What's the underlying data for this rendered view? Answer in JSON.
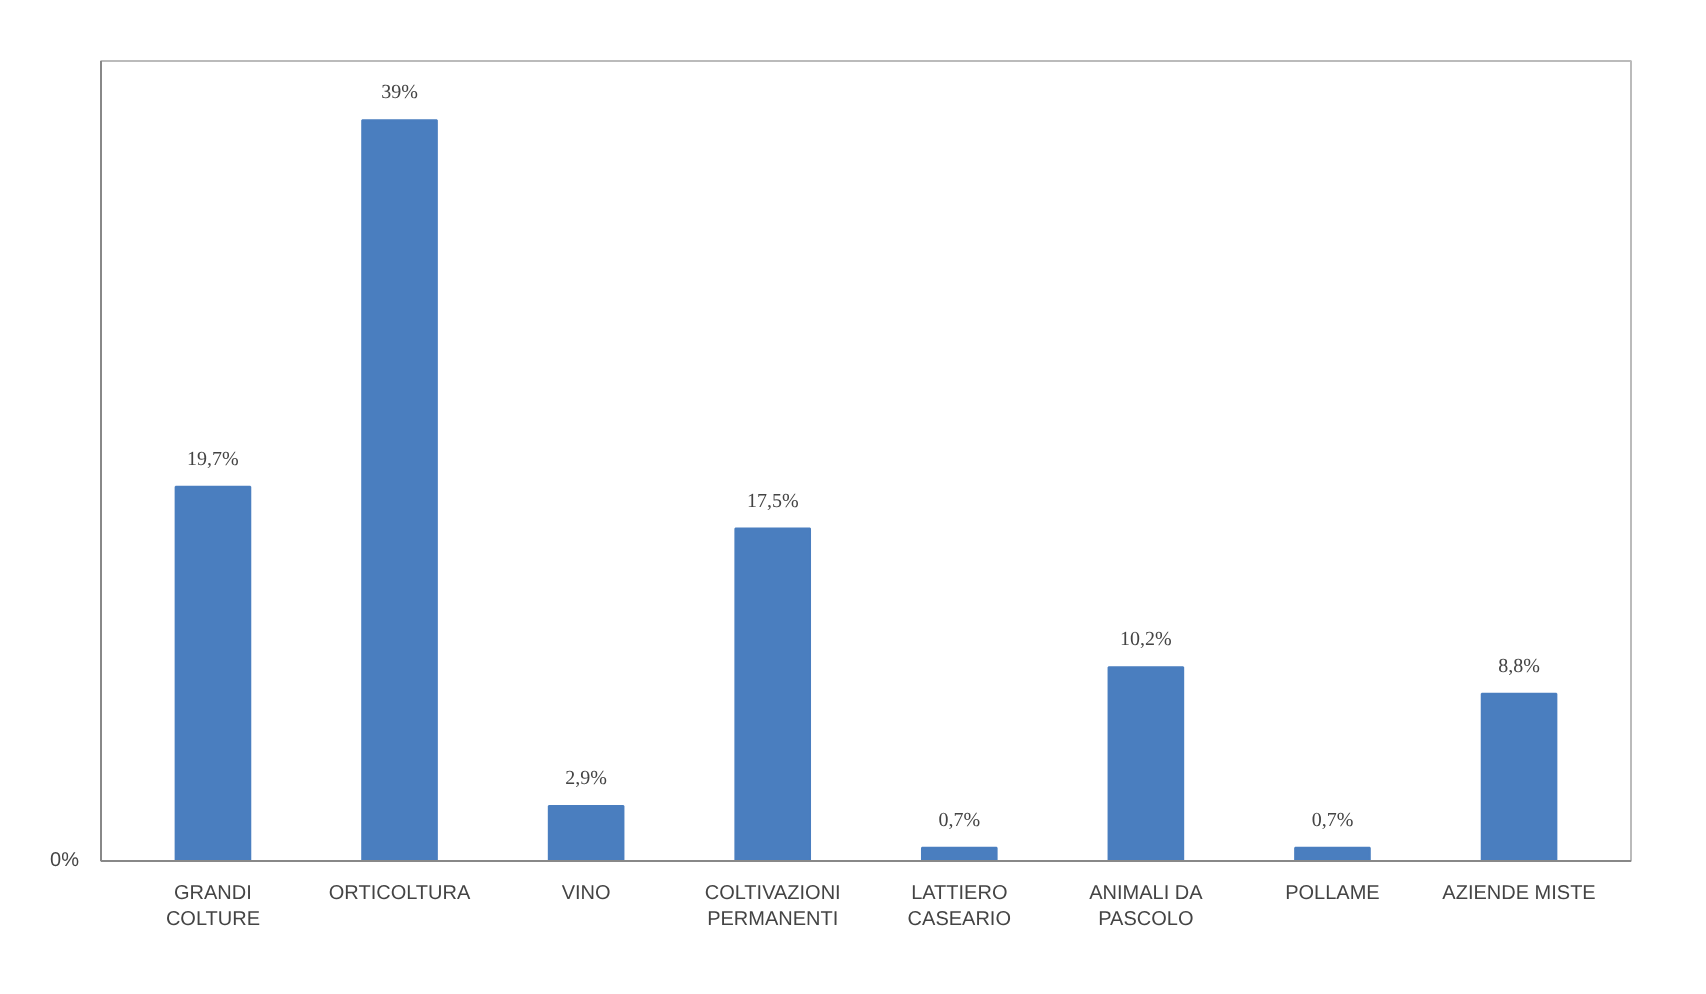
{
  "chart_data": {
    "type": "bar",
    "categories": [
      "GRANDI\nCOLTURE",
      "ORTICOLTURA",
      "VINO",
      "COLTIVAZIONI\nPERMANENTI",
      "LATTIERO\nCASEARIO",
      "ANIMALI DA\nPASCOLO",
      "POLLAME",
      "AZIENDE MISTE"
    ],
    "values": [
      19.7,
      39,
      2.9,
      17.5,
      0.7,
      10.2,
      0.7,
      8.8
    ],
    "value_labels": [
      "19,7%",
      "39%",
      "2,9%",
      "17,5%",
      "0,7%",
      "10,2%",
      "0,7%",
      "8,8%"
    ],
    "color": "#4a7ebf",
    "annotations": [
      "0%"
    ]
  }
}
